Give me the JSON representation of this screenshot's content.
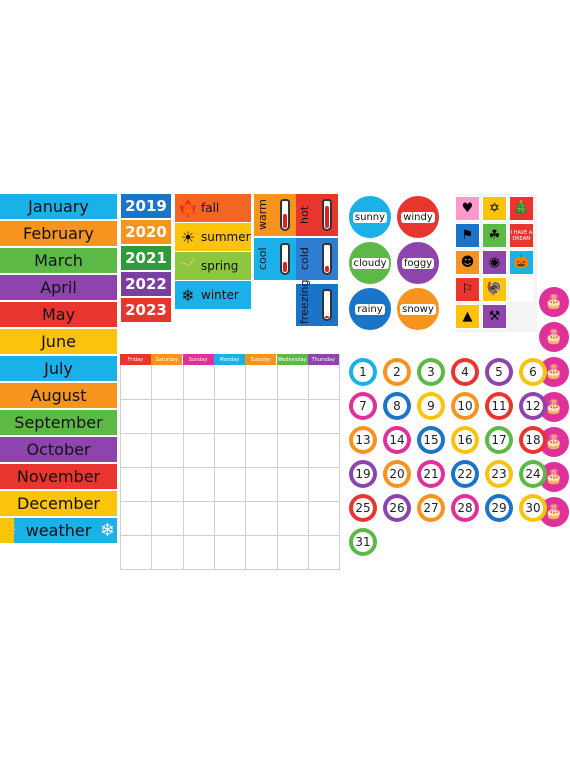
{
  "months": [
    {
      "label": "January",
      "color": "#1ab0e8"
    },
    {
      "label": "February",
      "color": "#f7941d"
    },
    {
      "label": "March",
      "color": "#5cb946"
    },
    {
      "label": "April",
      "color": "#8e44ad"
    },
    {
      "label": "May",
      "color": "#e8352e"
    },
    {
      "label": "June",
      "color": "#fcc30b"
    },
    {
      "label": "July",
      "color": "#1ab0e8"
    },
    {
      "label": "August",
      "color": "#f7941d"
    },
    {
      "label": "September",
      "color": "#5cb946"
    },
    {
      "label": "October",
      "color": "#8e44ad"
    },
    {
      "label": "November",
      "color": "#e8352e"
    },
    {
      "label": "December",
      "color": "#fcc30b"
    },
    {
      "label": "weather",
      "color": "#1ab0e8"
    }
  ],
  "years": [
    {
      "label": "2019",
      "color": "#1a74c8"
    },
    {
      "label": "2020",
      "color": "#f7941d"
    },
    {
      "label": "2021",
      "color": "#2e9a3a"
    },
    {
      "label": "2022",
      "color": "#7a3fa0"
    },
    {
      "label": "2023",
      "color": "#e8352e"
    }
  ],
  "seasons": [
    {
      "label": "fall",
      "icon": "leaf-icon",
      "glyph": "🍁",
      "color": "#f26522"
    },
    {
      "label": "summer",
      "icon": "sun-icon",
      "glyph": "☀",
      "color": "#fcc30b"
    },
    {
      "label": "spring",
      "icon": "sprout-icon",
      "glyph": "🌱",
      "color": "#8dc63f"
    },
    {
      "label": "winter",
      "icon": "snowflake-icon",
      "glyph": "❄",
      "color": "#1ab0e8"
    }
  ],
  "temps": [
    {
      "label": "warm",
      "color": "#f7941d",
      "level": 0.6
    },
    {
      "label": "hot",
      "color": "#e8352e",
      "level": 0.9
    },
    {
      "label": "cool",
      "color": "#1ab0e8",
      "level": 0.4
    },
    {
      "label": "cold",
      "color": "#2e7dd1",
      "level": 0.25
    },
    {
      "label": "freezing",
      "color": "#1a74c8",
      "level": 0.1
    }
  ],
  "weather": [
    {
      "label": "sunny",
      "color": "#1ab0e8"
    },
    {
      "label": "windy",
      "color": "#e8352e"
    },
    {
      "label": "cloudy",
      "color": "#5cb946"
    },
    {
      "label": "foggy",
      "color": "#8e44ad"
    },
    {
      "label": "rainy",
      "color": "#1a74c8"
    },
    {
      "label": "snowy",
      "color": "#f7941d"
    }
  ],
  "holidays": [
    {
      "icon": "hearts-icon",
      "glyph": "♥",
      "color": "#f9c"
    },
    {
      "icon": "menorah-icon",
      "glyph": "✡",
      "color": "#fcc30b"
    },
    {
      "icon": "tree-icon",
      "glyph": "🎄",
      "color": "#e8352e"
    },
    {
      "icon": "flag-icon",
      "glyph": "⚑",
      "color": "#1a74c8"
    },
    {
      "icon": "clover-icon",
      "glyph": "☘",
      "color": "#5cb946"
    },
    {
      "icon": "dream-sign-icon",
      "glyph": "I HAVE A DREAM",
      "color": "#e8352e"
    },
    {
      "icon": "silhouette-icon",
      "glyph": "☻",
      "color": "#f7941d"
    },
    {
      "icon": "egg-icon",
      "glyph": "◉",
      "color": "#8e44ad"
    },
    {
      "icon": "pumpkin-icon",
      "glyph": "🎃",
      "color": "#1ab0e8"
    },
    {
      "icon": "us-flag-icon",
      "glyph": "⚐",
      "color": "#e8352e"
    },
    {
      "icon": "turkey-icon",
      "glyph": "🦃",
      "color": "#fcc30b"
    },
    {
      "icon": "blank-icon",
      "glyph": "",
      "color": "#fff"
    },
    {
      "icon": "party-hat-icon",
      "glyph": "▲",
      "color": "#fcc30b"
    },
    {
      "icon": "hammer-icon",
      "glyph": "⚒",
      "color": "#8e44ad"
    }
  ],
  "calendar_days": [
    {
      "label": "Friday",
      "color": "#e8352e"
    },
    {
      "label": "Saturday",
      "color": "#f7941d"
    },
    {
      "label": "Sunday",
      "color": "#e0309a"
    },
    {
      "label": "Monday",
      "color": "#1ab0e8"
    },
    {
      "label": "Tuesday",
      "color": "#f7941d"
    },
    {
      "label": "Wednesday",
      "color": "#5cb946"
    },
    {
      "label": "Thursday",
      "color": "#8e44ad"
    }
  ],
  "numbers": [
    {
      "n": "1",
      "color": "#1ab0e8"
    },
    {
      "n": "2",
      "color": "#f7941d"
    },
    {
      "n": "3",
      "color": "#5cb946"
    },
    {
      "n": "4",
      "color": "#e8352e"
    },
    {
      "n": "5",
      "color": "#8e44ad"
    },
    {
      "n": "6",
      "color": "#fcc30b"
    },
    {
      "n": "7",
      "color": "#e0309a"
    },
    {
      "n": "8",
      "color": "#1a74c8"
    },
    {
      "n": "9",
      "color": "#fcc30b"
    },
    {
      "n": "10",
      "color": "#f7941d"
    },
    {
      "n": "11",
      "color": "#e8352e"
    },
    {
      "n": "12",
      "color": "#8e44ad"
    },
    {
      "n": "13",
      "color": "#f7941d"
    },
    {
      "n": "14",
      "color": "#e0309a"
    },
    {
      "n": "15",
      "color": "#1a74c8"
    },
    {
      "n": "16",
      "color": "#fcc30b"
    },
    {
      "n": "17",
      "color": "#5cb946"
    },
    {
      "n": "18",
      "color": "#e8352e"
    },
    {
      "n": "19",
      "color": "#8e44ad"
    },
    {
      "n": "20",
      "color": "#f7941d"
    },
    {
      "n": "21",
      "color": "#e0309a"
    },
    {
      "n": "22",
      "color": "#1a74c8"
    },
    {
      "n": "23",
      "color": "#fcc30b"
    },
    {
      "n": "24",
      "color": "#5cb946"
    },
    {
      "n": "25",
      "color": "#e8352e"
    },
    {
      "n": "26",
      "color": "#8e44ad"
    },
    {
      "n": "27",
      "color": "#f7941d"
    },
    {
      "n": "28",
      "color": "#e0309a"
    },
    {
      "n": "29",
      "color": "#1a74c8"
    },
    {
      "n": "30",
      "color": "#fcc30b"
    },
    {
      "n": "31",
      "color": "#5cb946"
    }
  ],
  "birthday_count": 7
}
